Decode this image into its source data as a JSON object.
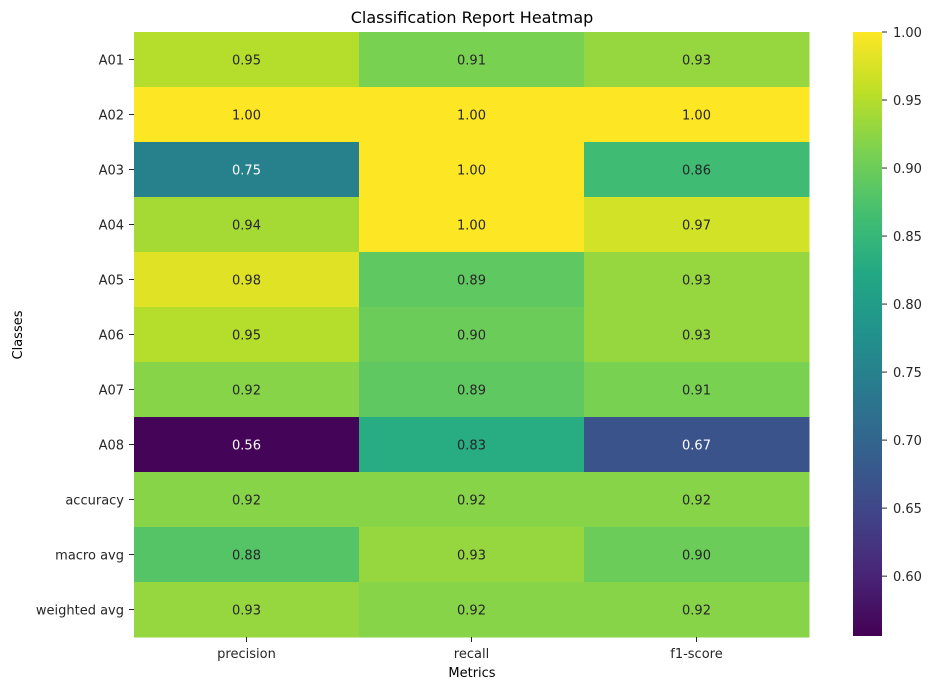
{
  "chart_data": {
    "type": "heatmap",
    "title": "Classification Report Heatmap",
    "xlabel": "Metrics",
    "ylabel": "Classes",
    "columns": [
      "precision",
      "recall",
      "f1-score"
    ],
    "rows": [
      "A01",
      "A02",
      "A03",
      "A04",
      "A05",
      "A06",
      "A07",
      "A08",
      "accuracy",
      "macro avg",
      "weighted avg"
    ],
    "values": [
      [
        0.95,
        0.91,
        0.93
      ],
      [
        1.0,
        1.0,
        1.0
      ],
      [
        0.75,
        1.0,
        0.86
      ],
      [
        0.94,
        1.0,
        0.97
      ],
      [
        0.98,
        0.89,
        0.93
      ],
      [
        0.95,
        0.9,
        0.93
      ],
      [
        0.92,
        0.89,
        0.91
      ],
      [
        0.56,
        0.83,
        0.67
      ],
      [
        0.92,
        0.92,
        0.92
      ],
      [
        0.88,
        0.93,
        0.9
      ],
      [
        0.93,
        0.92,
        0.92
      ]
    ],
    "value_format": "2 decimals",
    "colormap": "viridis",
    "color_range": [
      0.556,
      1.0
    ],
    "colorbar_ticks": [
      0.6,
      0.65,
      0.7,
      0.75,
      0.8,
      0.85,
      0.9,
      0.95,
      1.0
    ],
    "grid": false,
    "colorbar_position": "right"
  }
}
